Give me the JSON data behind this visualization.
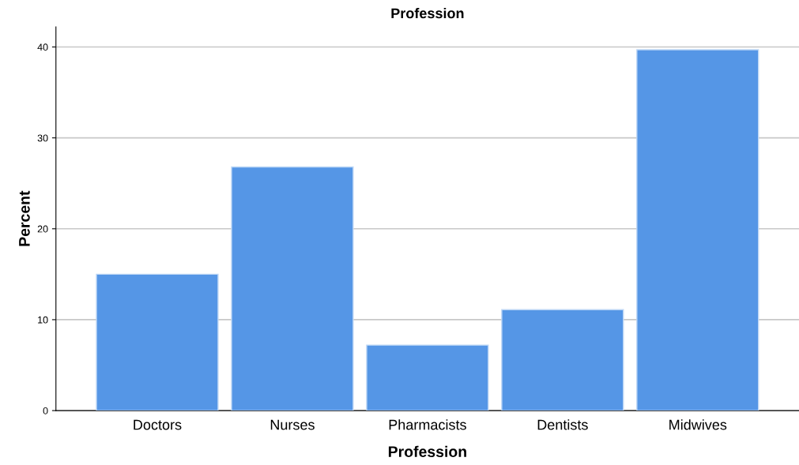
{
  "chart_data": {
    "type": "bar",
    "title": "Profession",
    "xlabel": "Profession",
    "ylabel": "Percent",
    "categories": [
      "Doctors",
      "Nurses",
      "Pharmacists",
      "Dentists",
      "Midwives"
    ],
    "values": [
      15.0,
      26.8,
      7.2,
      11.1,
      39.7
    ],
    "color": "#5596e6",
    "ylim": [
      0,
      42.2
    ],
    "yticks": [
      0,
      10,
      20,
      30,
      40
    ],
    "grid": "y"
  }
}
